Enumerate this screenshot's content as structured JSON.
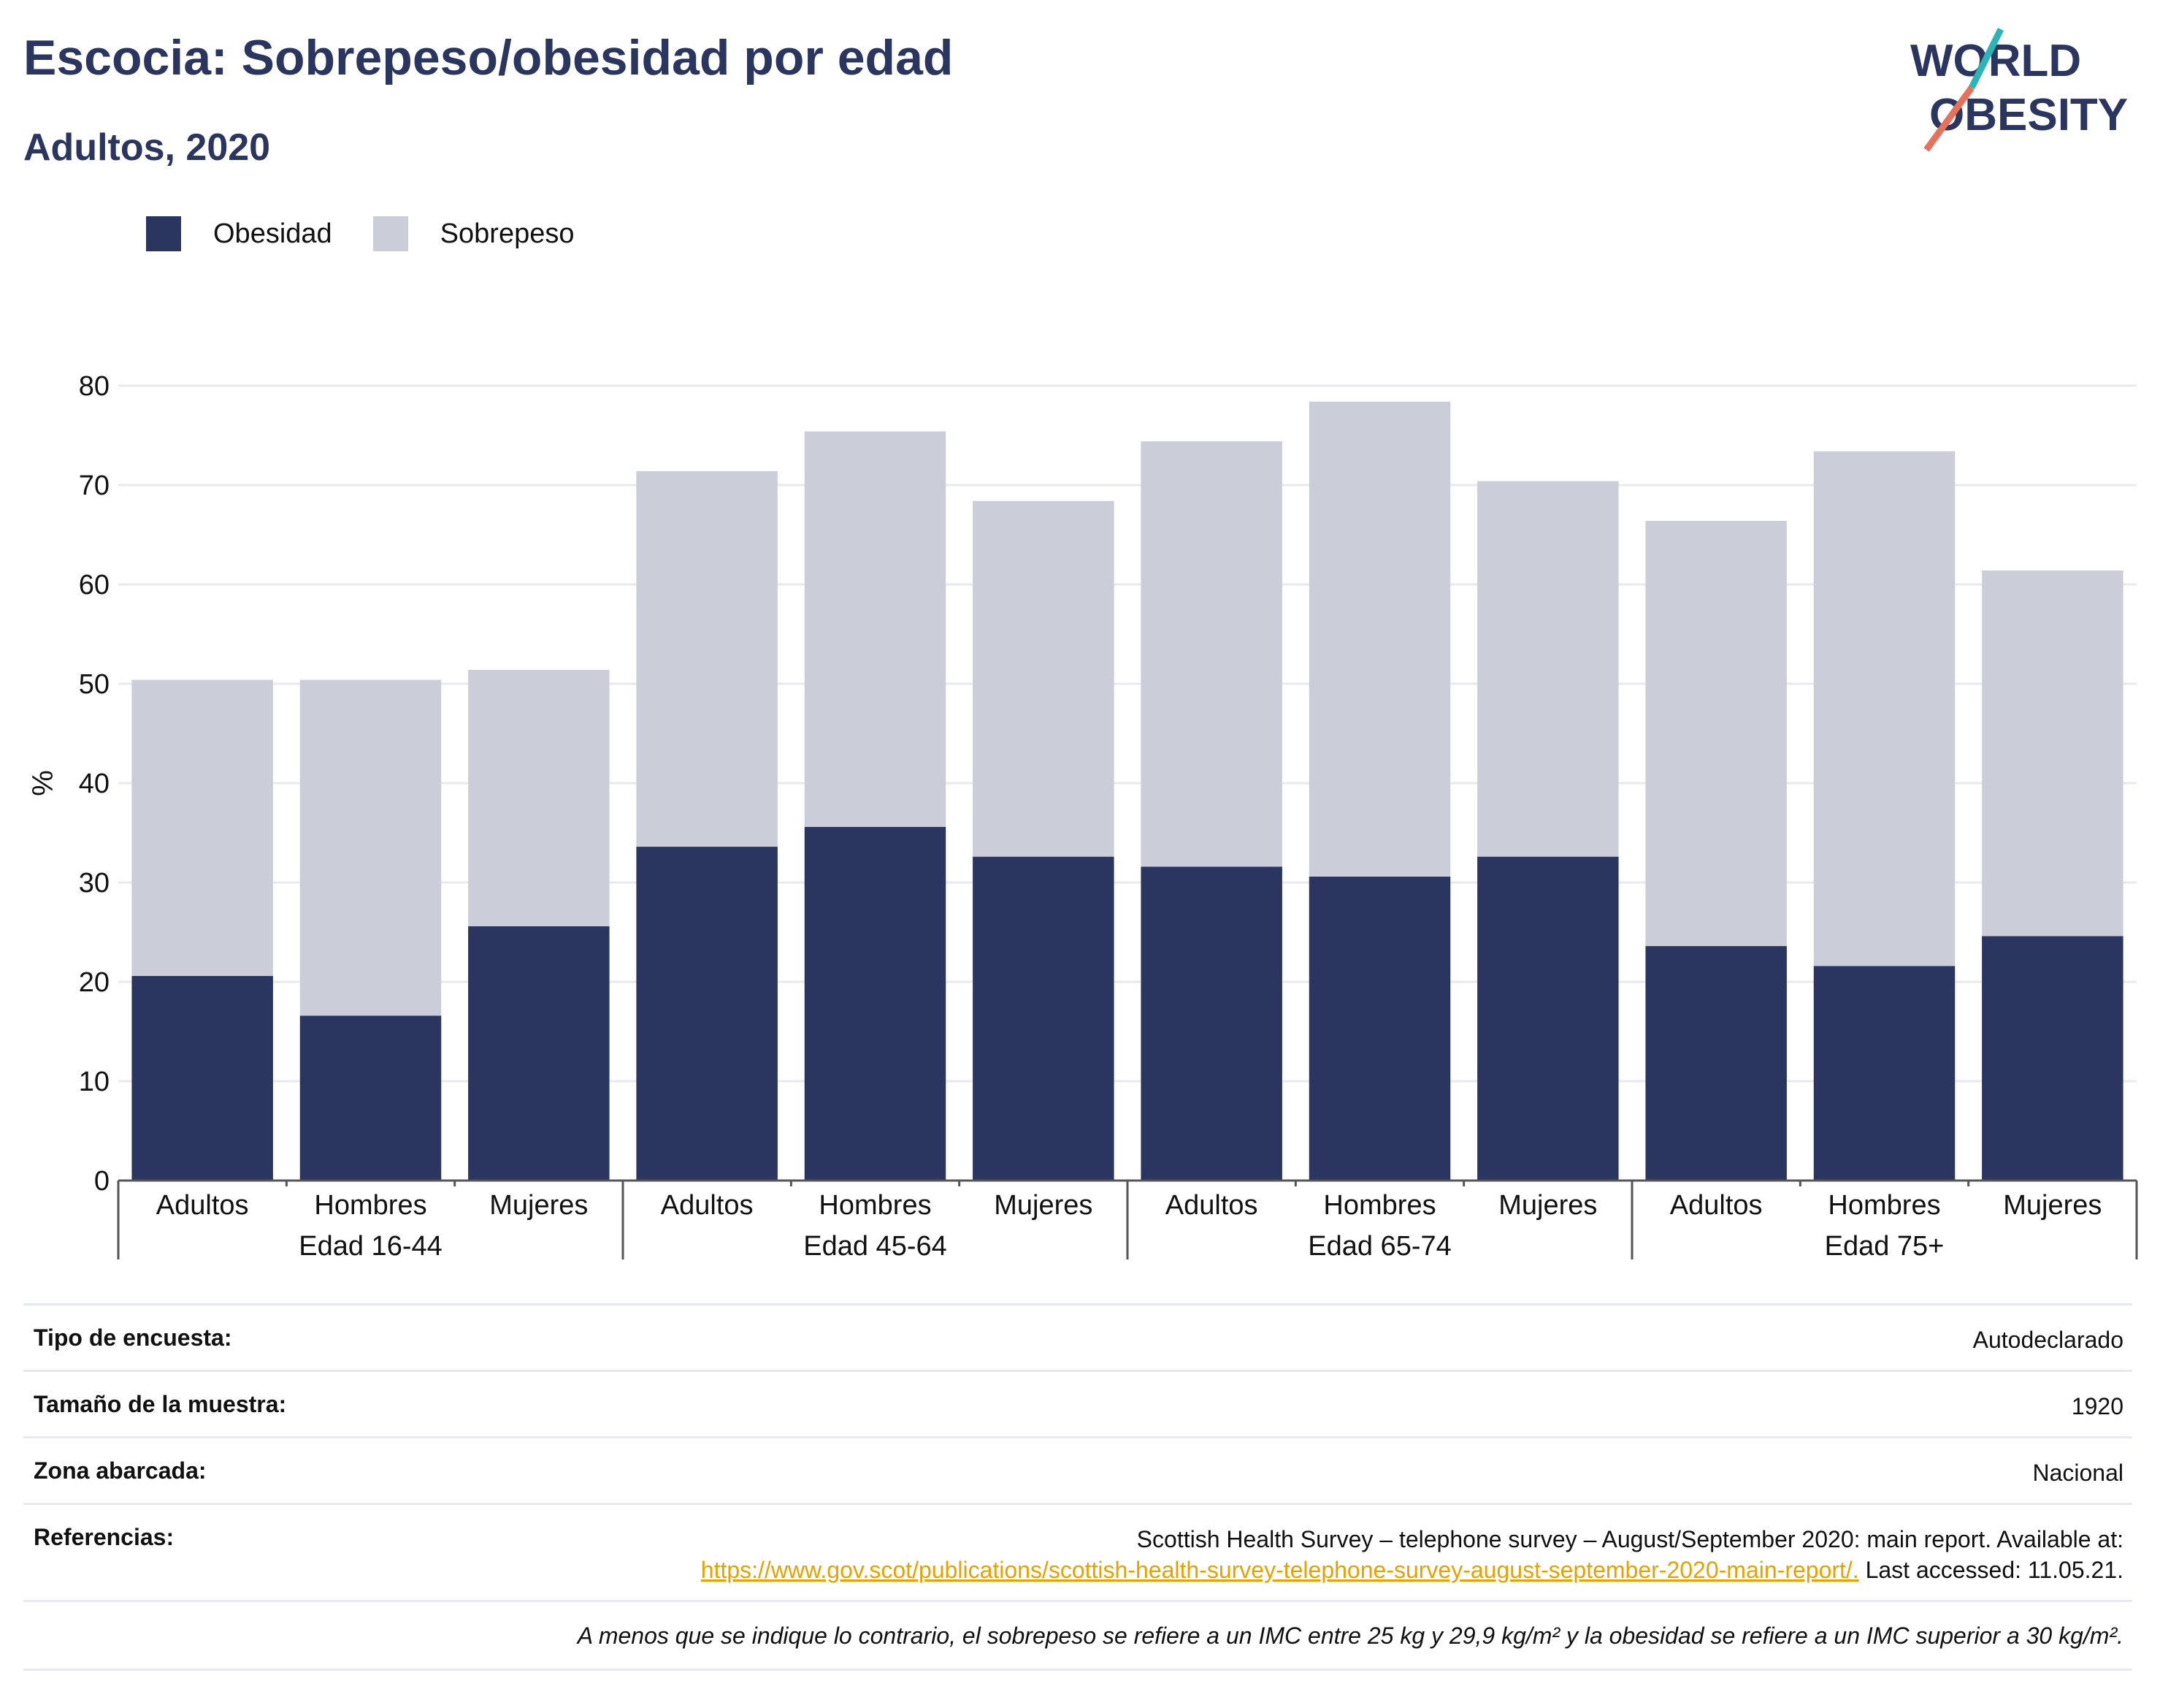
{
  "title": "Escocia: Sobrepeso/obesidad por edad",
  "subtitle": "Adultos, 2020",
  "logo": {
    "line1": "WORLD",
    "line2": "OBESITY"
  },
  "colors": {
    "obesity": "#2a3660",
    "overweight": "#cbcdd8",
    "accent_teal": "#2cb5b5",
    "accent_coral": "#e8715b",
    "link": "#e6a200"
  },
  "chart_data": {
    "type": "bar",
    "stacked": true,
    "ylabel": "%",
    "ylim": [
      0,
      80
    ],
    "yticks": [
      0,
      10,
      20,
      30,
      40,
      50,
      60,
      70,
      80
    ],
    "grid": true,
    "legend_position": "top-left",
    "groups": [
      "Edad 16-44",
      "Edad 45-64",
      "Edad 65-74",
      "Edad 75+"
    ],
    "categories": [
      "Adultos",
      "Hombres",
      "Mujeres",
      "Adultos",
      "Hombres",
      "Mujeres",
      "Adultos",
      "Hombres",
      "Mujeres",
      "Adultos",
      "Hombres",
      "Mujeres"
    ],
    "series": [
      {
        "name": "Obesidad",
        "values": [
          20.6,
          16.6,
          25.6,
          33.6,
          35.6,
          32.6,
          31.6,
          30.6,
          32.6,
          23.6,
          21.6,
          24.6
        ]
      },
      {
        "name": "Sobrepeso",
        "values": [
          29.8,
          33.8,
          25.8,
          37.8,
          39.8,
          35.8,
          42.8,
          47.8,
          37.8,
          42.8,
          51.8,
          36.8
        ]
      }
    ]
  },
  "info": {
    "rows": [
      {
        "label": "Tipo de encuesta:",
        "value": "Autodeclarado"
      },
      {
        "label": "Tamaño de la muestra:",
        "value": "1920"
      },
      {
        "label": "Zona abarcada:",
        "value": "Nacional"
      }
    ],
    "references": {
      "label": "Referencias:",
      "text1": "Scottish Health Survey – telephone survey – August/September 2020: main report. Available at:",
      "link": "https://www.gov.scot/publications/scottish-health-survey-telephone-survey-august-september-2020-main-report/.",
      "text2": "Last accessed: 11.05.21."
    },
    "note": "A menos que se indique lo contrario, el sobrepeso se refiere a un IMC entre 25 kg y 29,9 kg/m² y la obesidad se refiere a un IMC superior a 30 kg/m²."
  }
}
